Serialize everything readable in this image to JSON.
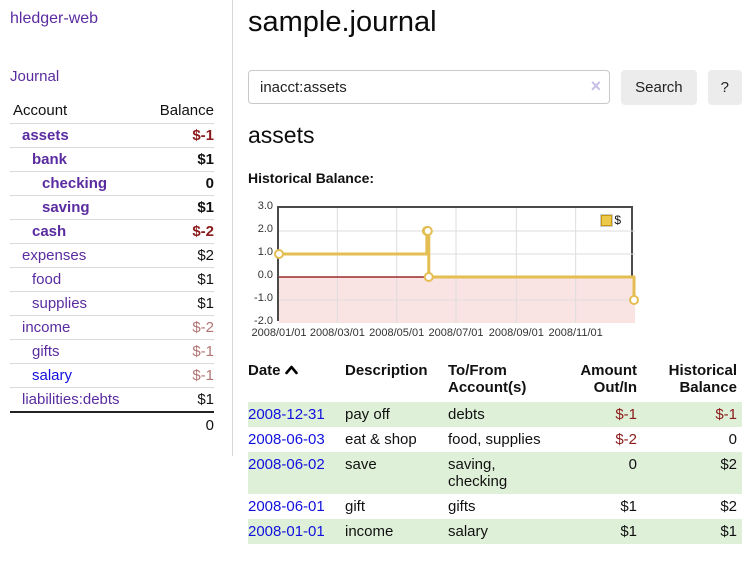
{
  "app": {
    "title": "hledger-web"
  },
  "sidebar": {
    "journal_link": "Journal",
    "accounts": {
      "col_account": "Account",
      "col_balance": "Balance",
      "rows": [
        {
          "name": "assets",
          "balance": "$-1",
          "depth": 0,
          "bold": true,
          "balance_class": "neg",
          "link": "purple"
        },
        {
          "name": "bank",
          "balance": "$1",
          "depth": 1,
          "bold": true,
          "balance_class": "",
          "link": "purple"
        },
        {
          "name": "checking",
          "balance": "0",
          "depth": 2,
          "bold": true,
          "balance_class": "",
          "link": "purple"
        },
        {
          "name": "saving",
          "balance": "$1",
          "depth": 2,
          "bold": true,
          "balance_class": "",
          "link": "purple"
        },
        {
          "name": "cash",
          "balance": "$-2",
          "depth": 1,
          "bold": true,
          "balance_class": "neg",
          "link": "purple"
        },
        {
          "name": "expenses",
          "balance": "$2",
          "depth": 0,
          "bold": false,
          "balance_class": "",
          "link": "purple"
        },
        {
          "name": "food",
          "balance": "$1",
          "depth": 1,
          "bold": false,
          "balance_class": "",
          "link": "purple"
        },
        {
          "name": "supplies",
          "balance": "$1",
          "depth": 1,
          "bold": false,
          "balance_class": "",
          "link": "purple"
        },
        {
          "name": "income",
          "balance": "$-2",
          "depth": 0,
          "bold": false,
          "balance_class": "muted",
          "link": "purple"
        },
        {
          "name": "gifts",
          "balance": "$-1",
          "depth": 1,
          "bold": false,
          "balance_class": "muted",
          "link": "purple"
        },
        {
          "name": "salary",
          "balance": "$-1",
          "depth": 1,
          "bold": false,
          "balance_class": "muted",
          "link": "blue"
        },
        {
          "name": "liabilities:debts",
          "balance": "$1",
          "depth": 0,
          "bold": false,
          "balance_class": "",
          "link": "purple"
        }
      ],
      "total": "0"
    }
  },
  "main": {
    "title": "sample.journal",
    "search": {
      "value": "inacct:assets",
      "clear_icon": "×",
      "search_button": "Search",
      "help_button": "?"
    },
    "account_heading": "assets",
    "chart_label": "Historical Balance:",
    "transactions": {
      "col_date": "Date",
      "col_description": "Description",
      "col_tofrom": "To/From Account(s)",
      "col_amount": "Amount Out/In",
      "col_balance": "Historical Balance",
      "rows": [
        {
          "date": "2008-12-31",
          "description": "pay off",
          "tofrom": "debts",
          "amount": "$-1",
          "amount_neg": true,
          "balance": "$-1",
          "balance_neg": true
        },
        {
          "date": "2008-06-03",
          "description": "eat & shop",
          "tofrom": "food, supplies",
          "amount": "$-2",
          "amount_neg": true,
          "balance": "0",
          "balance_neg": false
        },
        {
          "date": "2008-06-02",
          "description": "save",
          "tofrom": "saving, checking",
          "amount": "0",
          "amount_neg": false,
          "balance": "$2",
          "balance_neg": false
        },
        {
          "date": "2008-06-01",
          "description": "gift",
          "tofrom": "gifts",
          "amount": "$1",
          "amount_neg": false,
          "balance": "$2",
          "balance_neg": false
        },
        {
          "date": "2008-01-01",
          "description": "income",
          "tofrom": "salary",
          "amount": "$1",
          "amount_neg": false,
          "balance": "$1",
          "balance_neg": false
        }
      ]
    }
  },
  "chart_data": {
    "type": "line",
    "title": "Historical Balance:",
    "legend": "$",
    "step": true,
    "x_range": [
      "2008-01-01",
      "2009-01-01"
    ],
    "ylim": [
      -2,
      3
    ],
    "y_ticks": [
      "3.0",
      "2.0",
      "1.0",
      "0.0",
      "-1.0",
      "-2.0"
    ],
    "x_ticks": [
      "2008/01/01",
      "2008/03/01",
      "2008/05/01",
      "2008/07/01",
      "2008/09/01",
      "2008/11/01"
    ],
    "series": [
      {
        "name": "$",
        "points": [
          [
            "2008-01-01",
            1
          ],
          [
            "2008-06-01",
            2
          ],
          [
            "2008-06-02",
            2
          ],
          [
            "2008-06-03",
            0
          ],
          [
            "2008-12-31",
            -1
          ]
        ]
      }
    ],
    "colors": {
      "line": "#e4be52",
      "marker_fill": "#ffffff",
      "negative_fill": "#fae3e3",
      "zero_line": "#8b0000",
      "grid": "#dddddd"
    }
  },
  "colors": {
    "purple_link": "#5a2ca0",
    "blue_link": "#1111dd",
    "negative": "#8b1a1a",
    "negative_muted": "#b07575",
    "row_green": "#dff0d8"
  }
}
